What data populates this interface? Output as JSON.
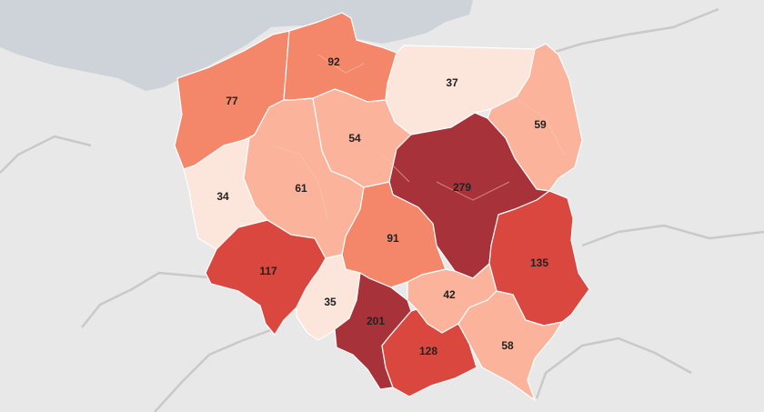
{
  "map": {
    "colors": {
      "background": "#e8e8e8",
      "sea": "#cdd3d8",
      "scale": [
        "#fce5da",
        "#fbb49b",
        "#f4876a",
        "#d9473f",
        "#a8323a"
      ]
    },
    "regions": [
      {
        "id": "zachodniopomorskie",
        "value": "77",
        "color": "#f4876a"
      },
      {
        "id": "pomorskie",
        "value": "92",
        "color": "#f4876a"
      },
      {
        "id": "warminsko-mazurskie",
        "value": "37",
        "color": "#fce5da"
      },
      {
        "id": "podlaskie",
        "value": "59",
        "color": "#fbb49b"
      },
      {
        "id": "lubuskie",
        "value": "34",
        "color": "#fce5da"
      },
      {
        "id": "wielkopolskie",
        "value": "61",
        "color": "#fbb49b"
      },
      {
        "id": "kujawsko-pomorskie",
        "value": "54",
        "color": "#fbb49b"
      },
      {
        "id": "mazowieckie",
        "value": "279",
        "color": "#a8323a"
      },
      {
        "id": "lodzkie",
        "value": "91",
        "color": "#f4876a"
      },
      {
        "id": "lubelskie",
        "value": "135",
        "color": "#d9473f"
      },
      {
        "id": "dolnoslaskie",
        "value": "117",
        "color": "#d9473f"
      },
      {
        "id": "opolskie",
        "value": "35",
        "color": "#fce5da"
      },
      {
        "id": "swietokrzyskie",
        "value": "42",
        "color": "#fbb49b"
      },
      {
        "id": "slaskie",
        "value": "201",
        "color": "#a8323a"
      },
      {
        "id": "malopolskie",
        "value": "128",
        "color": "#d9473f"
      },
      {
        "id": "podkarpackie",
        "value": "58",
        "color": "#fbb49b"
      }
    ]
  }
}
